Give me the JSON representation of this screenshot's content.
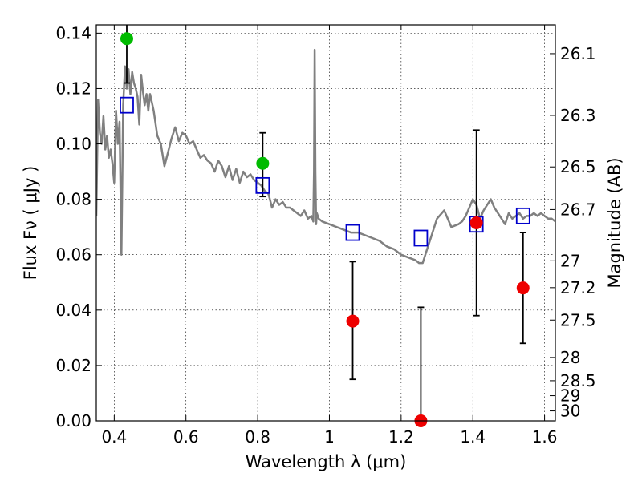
{
  "chart_data": {
    "type": "scatter",
    "xlabel": "Wavelength  λ (μm)",
    "ylabel": "Flux  Fν  ( μJy )",
    "ylabel_right": "Magnitude (AB)",
    "xlim": [
      0.35,
      1.63
    ],
    "ylim": [
      0,
      0.143
    ],
    "grid": true,
    "x_ticks": [
      0.4,
      0.6,
      0.8,
      1.0,
      1.2,
      1.4,
      1.6
    ],
    "x_tick_labels": [
      "0.4",
      "0.6",
      "0.8",
      "1",
      "1.2",
      "1.4",
      "1.6"
    ],
    "y_ticks": [
      0,
      0.02,
      0.04,
      0.06,
      0.08,
      0.1,
      0.12,
      0.14
    ],
    "y_tick_labels": [
      "0.00",
      "0.02",
      "0.04",
      "0.06",
      "0.08",
      "0.10",
      "0.12",
      "0.14"
    ],
    "right_ticks": [
      {
        "flux": 0.1326,
        "label": "26.1"
      },
      {
        "flux": 0.1103,
        "label": "26.3"
      },
      {
        "flux": 0.0917,
        "label": "26.5"
      },
      {
        "flux": 0.0763,
        "label": "26.7"
      },
      {
        "flux": 0.0578,
        "label": "27"
      },
      {
        "flux": 0.0481,
        "label": "27.2"
      },
      {
        "flux": 0.0364,
        "label": "27.5"
      },
      {
        "flux": 0.0229,
        "label": "28"
      },
      {
        "flux": 0.0145,
        "label": "28.5"
      },
      {
        "flux": 0.0091,
        "label": "29"
      },
      {
        "flux": 0.0036,
        "label": "30"
      }
    ],
    "series": [
      {
        "kind": "model-spectrum",
        "color": "#808080",
        "x": [
          0.35,
          0.355,
          0.36,
          0.365,
          0.37,
          0.375,
          0.38,
          0.385,
          0.39,
          0.395,
          0.4,
          0.405,
          0.41,
          0.415,
          0.42,
          0.425,
          0.43,
          0.435,
          0.44,
          0.445,
          0.45,
          0.455,
          0.46,
          0.465,
          0.47,
          0.475,
          0.48,
          0.485,
          0.49,
          0.495,
          0.5,
          0.51,
          0.52,
          0.53,
          0.54,
          0.55,
          0.56,
          0.57,
          0.58,
          0.59,
          0.6,
          0.61,
          0.62,
          0.63,
          0.64,
          0.65,
          0.66,
          0.67,
          0.68,
          0.69,
          0.7,
          0.71,
          0.72,
          0.73,
          0.74,
          0.75,
          0.76,
          0.77,
          0.78,
          0.79,
          0.8,
          0.81,
          0.82,
          0.83,
          0.84,
          0.85,
          0.86,
          0.87,
          0.88,
          0.89,
          0.9,
          0.91,
          0.92,
          0.93,
          0.94,
          0.95,
          0.955,
          0.957,
          0.959,
          0.961,
          0.963,
          0.965,
          0.97,
          0.98,
          1.0,
          1.02,
          1.04,
          1.06,
          1.08,
          1.1,
          1.12,
          1.14,
          1.16,
          1.18,
          1.2,
          1.22,
          1.24,
          1.25,
          1.26,
          1.27,
          1.28,
          1.3,
          1.32,
          1.34,
          1.36,
          1.37,
          1.38,
          1.39,
          1.4,
          1.41,
          1.42,
          1.43,
          1.44,
          1.45,
          1.46,
          1.47,
          1.48,
          1.49,
          1.5,
          1.51,
          1.52,
          1.53,
          1.54,
          1.55,
          1.56,
          1.57,
          1.58,
          1.59,
          1.6,
          1.61,
          1.62,
          1.63
        ],
        "y": [
          0.074,
          0.116,
          0.104,
          0.1,
          0.11,
          0.098,
          0.103,
          0.095,
          0.098,
          0.093,
          0.086,
          0.112,
          0.1,
          0.108,
          0.06,
          0.114,
          0.128,
          0.12,
          0.127,
          0.118,
          0.126,
          0.122,
          0.12,
          0.117,
          0.107,
          0.125,
          0.119,
          0.114,
          0.118,
          0.112,
          0.118,
          0.112,
          0.103,
          0.1,
          0.092,
          0.097,
          0.102,
          0.106,
          0.101,
          0.104,
          0.103,
          0.1,
          0.101,
          0.098,
          0.095,
          0.096,
          0.094,
          0.093,
          0.09,
          0.094,
          0.092,
          0.088,
          0.092,
          0.087,
          0.091,
          0.086,
          0.09,
          0.088,
          0.089,
          0.087,
          0.086,
          0.085,
          0.083,
          0.082,
          0.077,
          0.08,
          0.078,
          0.079,
          0.077,
          0.077,
          0.076,
          0.075,
          0.074,
          0.076,
          0.073,
          0.074,
          0.072,
          0.09,
          0.134,
          0.09,
          0.071,
          0.075,
          0.073,
          0.072,
          0.071,
          0.07,
          0.069,
          0.068,
          0.068,
          0.067,
          0.066,
          0.065,
          0.063,
          0.062,
          0.06,
          0.059,
          0.058,
          0.057,
          0.057,
          0.061,
          0.065,
          0.073,
          0.076,
          0.07,
          0.071,
          0.072,
          0.074,
          0.077,
          0.08,
          0.078,
          0.073,
          0.076,
          0.078,
          0.08,
          0.077,
          0.075,
          0.073,
          0.071,
          0.075,
          0.073,
          0.074,
          0.075,
          0.073,
          0.074,
          0.074,
          0.075,
          0.074,
          0.075,
          0.074,
          0.073,
          0.073,
          0.072
        ]
      },
      {
        "kind": "model-photometry",
        "marker": "open-square",
        "color": "#0000cc",
        "x": [
          0.435,
          0.814,
          1.065,
          1.255,
          1.41,
          1.54
        ],
        "y": [
          0.114,
          0.085,
          0.068,
          0.066,
          0.071,
          0.074
        ]
      },
      {
        "kind": "observed-green",
        "marker": "filled-circle",
        "color": "#00bb00",
        "x": [
          0.435,
          0.814
        ],
        "y": [
          0.138,
          0.093
        ],
        "yerr_low": [
          0.122,
          0.081
        ],
        "yerr_high": [
          0.145,
          0.104
        ]
      },
      {
        "kind": "observed-red",
        "marker": "filled-circle",
        "color": "#ee0000",
        "x": [
          1.065,
          1.255,
          1.41,
          1.54
        ],
        "y": [
          0.036,
          0.0,
          0.0715,
          0.048
        ],
        "yerr_low": [
          0.015,
          0.0,
          0.038,
          0.028
        ],
        "yerr_high": [
          0.0575,
          0.041,
          0.105,
          0.068
        ]
      }
    ]
  }
}
